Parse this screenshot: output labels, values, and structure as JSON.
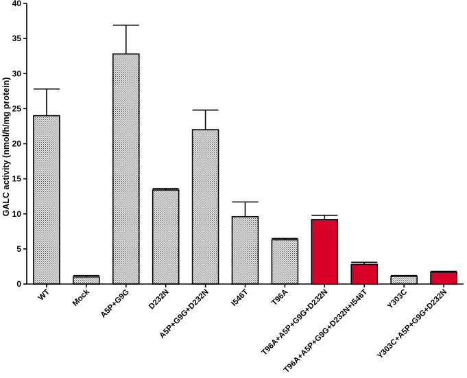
{
  "chart_data": {
    "type": "bar",
    "title": "",
    "xlabel": "",
    "ylabel": "GALC activity (nmol/h/mg protein)",
    "ylim": [
      0,
      40
    ],
    "yticks": [
      0,
      5,
      10,
      15,
      20,
      25,
      30,
      35,
      40
    ],
    "categories": [
      "WT",
      "Mock",
      "A5P+G9G",
      "D232N",
      "A5P+G9G+D232N",
      "I546T",
      "T96A",
      "T96A+A5P+G9G+D232N",
      "T96A+A5P+G9G+D232N+I546T",
      "Y303C",
      "Y303C+A5P+G9G+D232N"
    ],
    "values": [
      24.0,
      1.0,
      32.8,
      13.4,
      22.0,
      9.6,
      6.3,
      9.2,
      2.8,
      1.1,
      1.7
    ],
    "errors": [
      3.8,
      0.2,
      4.1,
      0.2,
      2.8,
      2.1,
      0.2,
      0.6,
      0.3,
      0.1,
      0.1
    ],
    "bar_colors": [
      "pattern",
      "pattern",
      "pattern",
      "pattern",
      "pattern",
      "pattern",
      "pattern",
      "#d80027",
      "#d80027",
      "pattern",
      "#d80027"
    ],
    "grid": false,
    "legend": "none"
  }
}
